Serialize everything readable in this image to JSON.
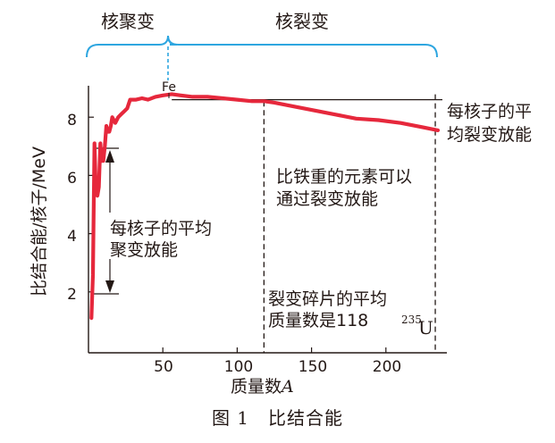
{
  "regions": {
    "fusion": "核聚变",
    "fission": "核裂变"
  },
  "annotations": {
    "fe": "Fe",
    "max_energy_line1": "每核子的平",
    "max_energy_line2": "均裂变放能",
    "heavier_line1": "比铁重的元素可以",
    "heavier_line2": "通过裂变放能",
    "avg_fusion_line1": "每核子的平均",
    "avg_fusion_line2": "聚变放能",
    "fragments_line1": "裂变碎片的平均",
    "fragments_line2": "质量数是118",
    "u235_mass": "235",
    "u235_symbol": "U"
  },
  "caption": "图 1　比结合能",
  "colors": {
    "curve": "#e6283c",
    "brace": "#2ea6e0",
    "ink": "#231815"
  },
  "chart_data": {
    "type": "line",
    "xlabel": "质量数",
    "xlabel_var": "A",
    "ylabel": "比结合能/核子/MeV",
    "x_ticks": [
      "50",
      "100",
      "150",
      "200"
    ],
    "y_ticks": [
      "2",
      "4",
      "6",
      "8"
    ],
    "xlim": [
      0,
      240
    ],
    "ylim": [
      0,
      9
    ],
    "reference_level": 8.6,
    "series": [
      {
        "x": [
          2,
          3,
          4,
          5,
          6,
          7,
          8,
          9,
          10,
          11,
          12,
          13,
          14,
          15,
          16,
          18,
          20,
          22,
          24,
          26,
          28,
          32,
          36,
          40,
          45,
          50,
          56,
          62,
          70,
          80,
          90,
          100,
          110,
          118,
          125,
          135,
          150,
          165,
          180,
          195,
          210,
          225,
          235
        ],
        "y": [
          1.1,
          2.6,
          7.1,
          5.5,
          5.3,
          5.6,
          7.1,
          6.5,
          6.5,
          7.0,
          7.7,
          7.5,
          7.5,
          7.7,
          8.0,
          7.8,
          8.0,
          8.1,
          8.2,
          8.3,
          8.6,
          8.6,
          8.65,
          8.6,
          8.7,
          8.75,
          8.79,
          8.75,
          8.7,
          8.7,
          8.65,
          8.6,
          8.55,
          8.55,
          8.5,
          8.4,
          8.25,
          8.1,
          7.95,
          7.9,
          7.8,
          7.65,
          7.55
        ]
      }
    ],
    "markers": [
      {
        "x": 56,
        "label": "Fe"
      },
      {
        "x": 118,
        "label": "裂变碎片的平均质量数是118"
      },
      {
        "x": 235,
        "label": "235U"
      }
    ]
  }
}
